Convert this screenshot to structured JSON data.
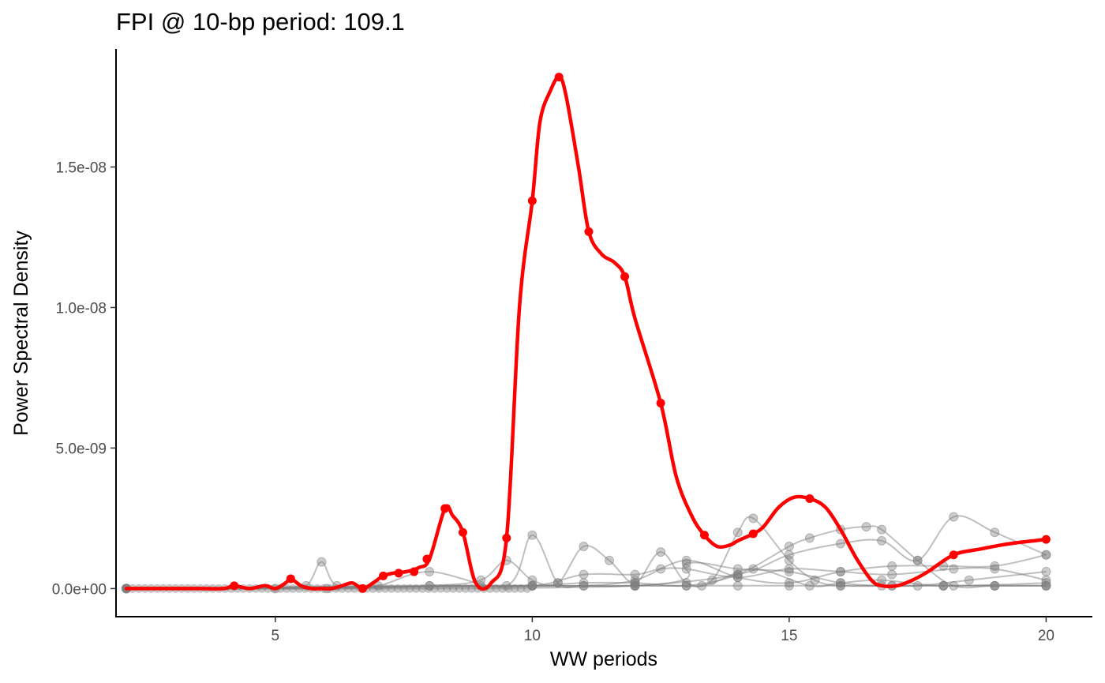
{
  "chart_data": {
    "type": "line",
    "title": "FPI @ 10-bp period: 109.1",
    "xlabel": "WW periods",
    "ylabel": "Power Spectral Density",
    "xlim": [
      1.9,
      20.9
    ],
    "ylim": [
      -1e-09,
      1.92e-08
    ],
    "x_ticks": [
      5,
      10,
      15,
      20
    ],
    "x_tick_labels": [
      "5",
      "10",
      "15",
      "20"
    ],
    "y_ticks": [
      0,
      5e-09,
      1e-08,
      1.5e-08
    ],
    "y_tick_labels": [
      "0.0e+00",
      "5.0e-09",
      "1.0e-08",
      "1.5e-08"
    ],
    "grid": false,
    "legend": "none",
    "colors": {
      "highlight": "#ff0000",
      "background": "#808080"
    },
    "highlight_series": {
      "x": [
        2.1,
        2.5,
        3.0,
        3.5,
        4.0,
        4.2,
        4.5,
        4.8,
        5.0,
        5.2,
        5.3,
        5.5,
        5.7,
        5.9,
        6.1,
        6.3,
        6.5,
        6.7,
        6.9,
        7.1,
        7.3,
        7.55,
        7.8,
        8.0,
        8.3,
        8.45,
        8.65,
        8.9,
        9.2,
        9.5,
        9.75,
        10.0,
        10.15,
        10.35,
        10.52,
        10.65,
        10.9,
        11.1,
        11.35,
        11.6,
        11.8,
        12.0,
        12.5,
        12.8,
        13.1,
        13.35,
        13.6,
        13.85,
        14.0,
        14.3,
        14.5,
        14.8,
        15.1,
        15.4,
        15.7,
        16.0,
        16.3,
        16.6,
        16.8,
        17.1,
        17.4,
        17.7,
        18.2,
        18.7,
        19.3,
        20.0
      ],
      "y": [
        0,
        0,
        0,
        0,
        0,
        1e-10,
        0,
        1e-10,
        0,
        2e-10,
        3.5e-10,
        1e-10,
        0,
        0,
        0,
        1e-10,
        2e-10,
        0,
        2e-10,
        4.5e-10,
        5.5e-10,
        6e-10,
        7.5e-10,
        1.05e-09,
        2.85e-09,
        2.6e-09,
        2e-09,
        2e-10,
        2e-10,
        1.8e-09,
        1e-08,
        1.38e-08,
        1.66e-08,
        1.77e-08,
        1.82e-08,
        1.76e-08,
        1.5e-08,
        1.27e-08,
        1.19e-08,
        1.16e-08,
        1.11e-08,
        9.6e-09,
        6.6e-09,
        4e-09,
        2.6e-09,
        1.9e-09,
        1.5e-09,
        1.55e-09,
        1.7e-09,
        1.95e-09,
        2.2e-09,
        2.9e-09,
        3.25e-09,
        3.2e-09,
        2.9e-09,
        2.1e-09,
        1.1e-09,
        3e-10,
        1e-10,
        1e-10,
        3e-10,
        6e-10,
        1.2e-09,
        1.4e-09,
        1.6e-09,
        1.75e-09
      ],
      "marker_x": [
        4.2,
        5.3,
        6.7,
        7.1,
        7.4,
        7.7,
        7.95,
        8.3,
        8.65,
        9.5,
        10.0,
        10.52,
        11.1,
        11.8,
        12.5,
        13.35,
        14.3,
        15.4,
        18.2,
        20.0
      ],
      "marker_y": [
        1e-10,
        3.5e-10,
        0,
        4.5e-10,
        5.5e-10,
        6e-10,
        1.05e-09,
        2.85e-09,
        2e-09,
        1.8e-09,
        1.38e-08,
        1.82e-08,
        1.27e-08,
        1.11e-08,
        6.6e-09,
        1.9e-09,
        1.95e-09,
        3.2e-09,
        1.2e-09,
        1.75e-09
      ]
    },
    "background_series": [
      {
        "x": [
          2.1,
          5.0,
          5.6,
          5.9,
          6.2,
          7.0,
          8.0,
          9.5,
          10.0,
          10.5,
          11.0,
          12.0,
          13.0,
          14.0,
          15.0,
          16.0,
          17.0,
          18.0,
          19.0,
          20.0
        ],
        "y": [
          0,
          0,
          1e-10,
          9.5e-10,
          1e-10,
          1e-10,
          6e-10,
          1e-10,
          1.9e-09,
          2e-10,
          1e-10,
          1e-10,
          1e-10,
          1e-10,
          1e-10,
          1e-10,
          1e-10,
          1e-10,
          1e-10,
          1e-10
        ]
      },
      {
        "x": [
          2.1,
          6.0,
          8.0,
          9.0,
          9.5,
          10.0,
          10.5,
          11.0,
          11.5,
          12.0,
          12.5,
          13.0,
          13.5,
          14.0,
          14.3,
          15.0,
          15.5,
          16.0,
          17.0,
          18.0,
          19.0,
          20.0
        ],
        "y": [
          0,
          0,
          1e-10,
          3e-10,
          1e-09,
          3e-10,
          2e-10,
          1.5e-09,
          1e-09,
          2e-10,
          1.3e-09,
          2e-10,
          3e-10,
          2e-09,
          2.5e-09,
          1e-09,
          3e-10,
          1e-10,
          1e-10,
          1e-10,
          1e-10,
          1e-10
        ]
      },
      {
        "x": [
          2.1,
          9.0,
          10.0,
          11.0,
          12.0,
          13.0,
          14.0,
          15.0,
          15.4,
          16.0,
          16.5,
          16.8,
          17.5,
          18.2,
          19.0,
          20.0
        ],
        "y": [
          0,
          1e-10,
          1e-10,
          2e-10,
          2e-10,
          1e-10,
          5e-10,
          1.5e-09,
          1.8e-09,
          2.1e-09,
          2.2e-09,
          2.1e-09,
          1e-09,
          1e-10,
          1e-10,
          1e-10
        ]
      },
      {
        "x": [
          2.1,
          10.0,
          12.0,
          14.0,
          15.0,
          16.0,
          16.8,
          17.5,
          18.2,
          19.0,
          20.0
        ],
        "y": [
          0,
          1e-10,
          1e-10,
          5e-10,
          1.2e-09,
          1.6e-09,
          1.7e-09,
          1e-09,
          2.55e-09,
          2e-09,
          1.2e-09
        ]
      },
      {
        "x": [
          2.1,
          8.0,
          10.0,
          11.0,
          12.0,
          12.5,
          13.0,
          14.0,
          15.0,
          16.0,
          17.0,
          18.2,
          19.0,
          20.0
        ],
        "y": [
          0,
          1e-10,
          1e-10,
          5e-10,
          5e-10,
          7e-10,
          7e-10,
          4e-10,
          7e-10,
          6e-10,
          5e-10,
          7e-10,
          7e-10,
          3e-10
        ]
      },
      {
        "x": [
          2.1,
          10.0,
          11.0,
          12.0,
          13.0,
          14.0,
          15.0,
          16.0,
          17.0,
          18.0,
          19.0,
          20.0
        ],
        "y": [
          0,
          1e-10,
          1e-10,
          3e-10,
          1e-09,
          4e-10,
          2e-10,
          6e-10,
          8e-10,
          8e-10,
          8e-10,
          1.2e-09
        ]
      },
      {
        "x": [
          2.1,
          12.0,
          13.0,
          14.0,
          15.0,
          16.0,
          16.8,
          17.5,
          18.5,
          20.0
        ],
        "y": [
          0,
          1e-10,
          9e-10,
          7e-10,
          6e-10,
          2e-10,
          1e-10,
          1e-10,
          3e-10,
          6e-10
        ]
      },
      {
        "x": [
          2.1,
          12.0,
          13.3,
          14.3,
          15.4,
          16.0,
          16.8,
          18.0,
          20.0
        ],
        "y": [
          0,
          1e-10,
          1e-10,
          7e-10,
          1e-10,
          2e-10,
          3e-10,
          1e-10,
          2e-10
        ]
      }
    ]
  }
}
